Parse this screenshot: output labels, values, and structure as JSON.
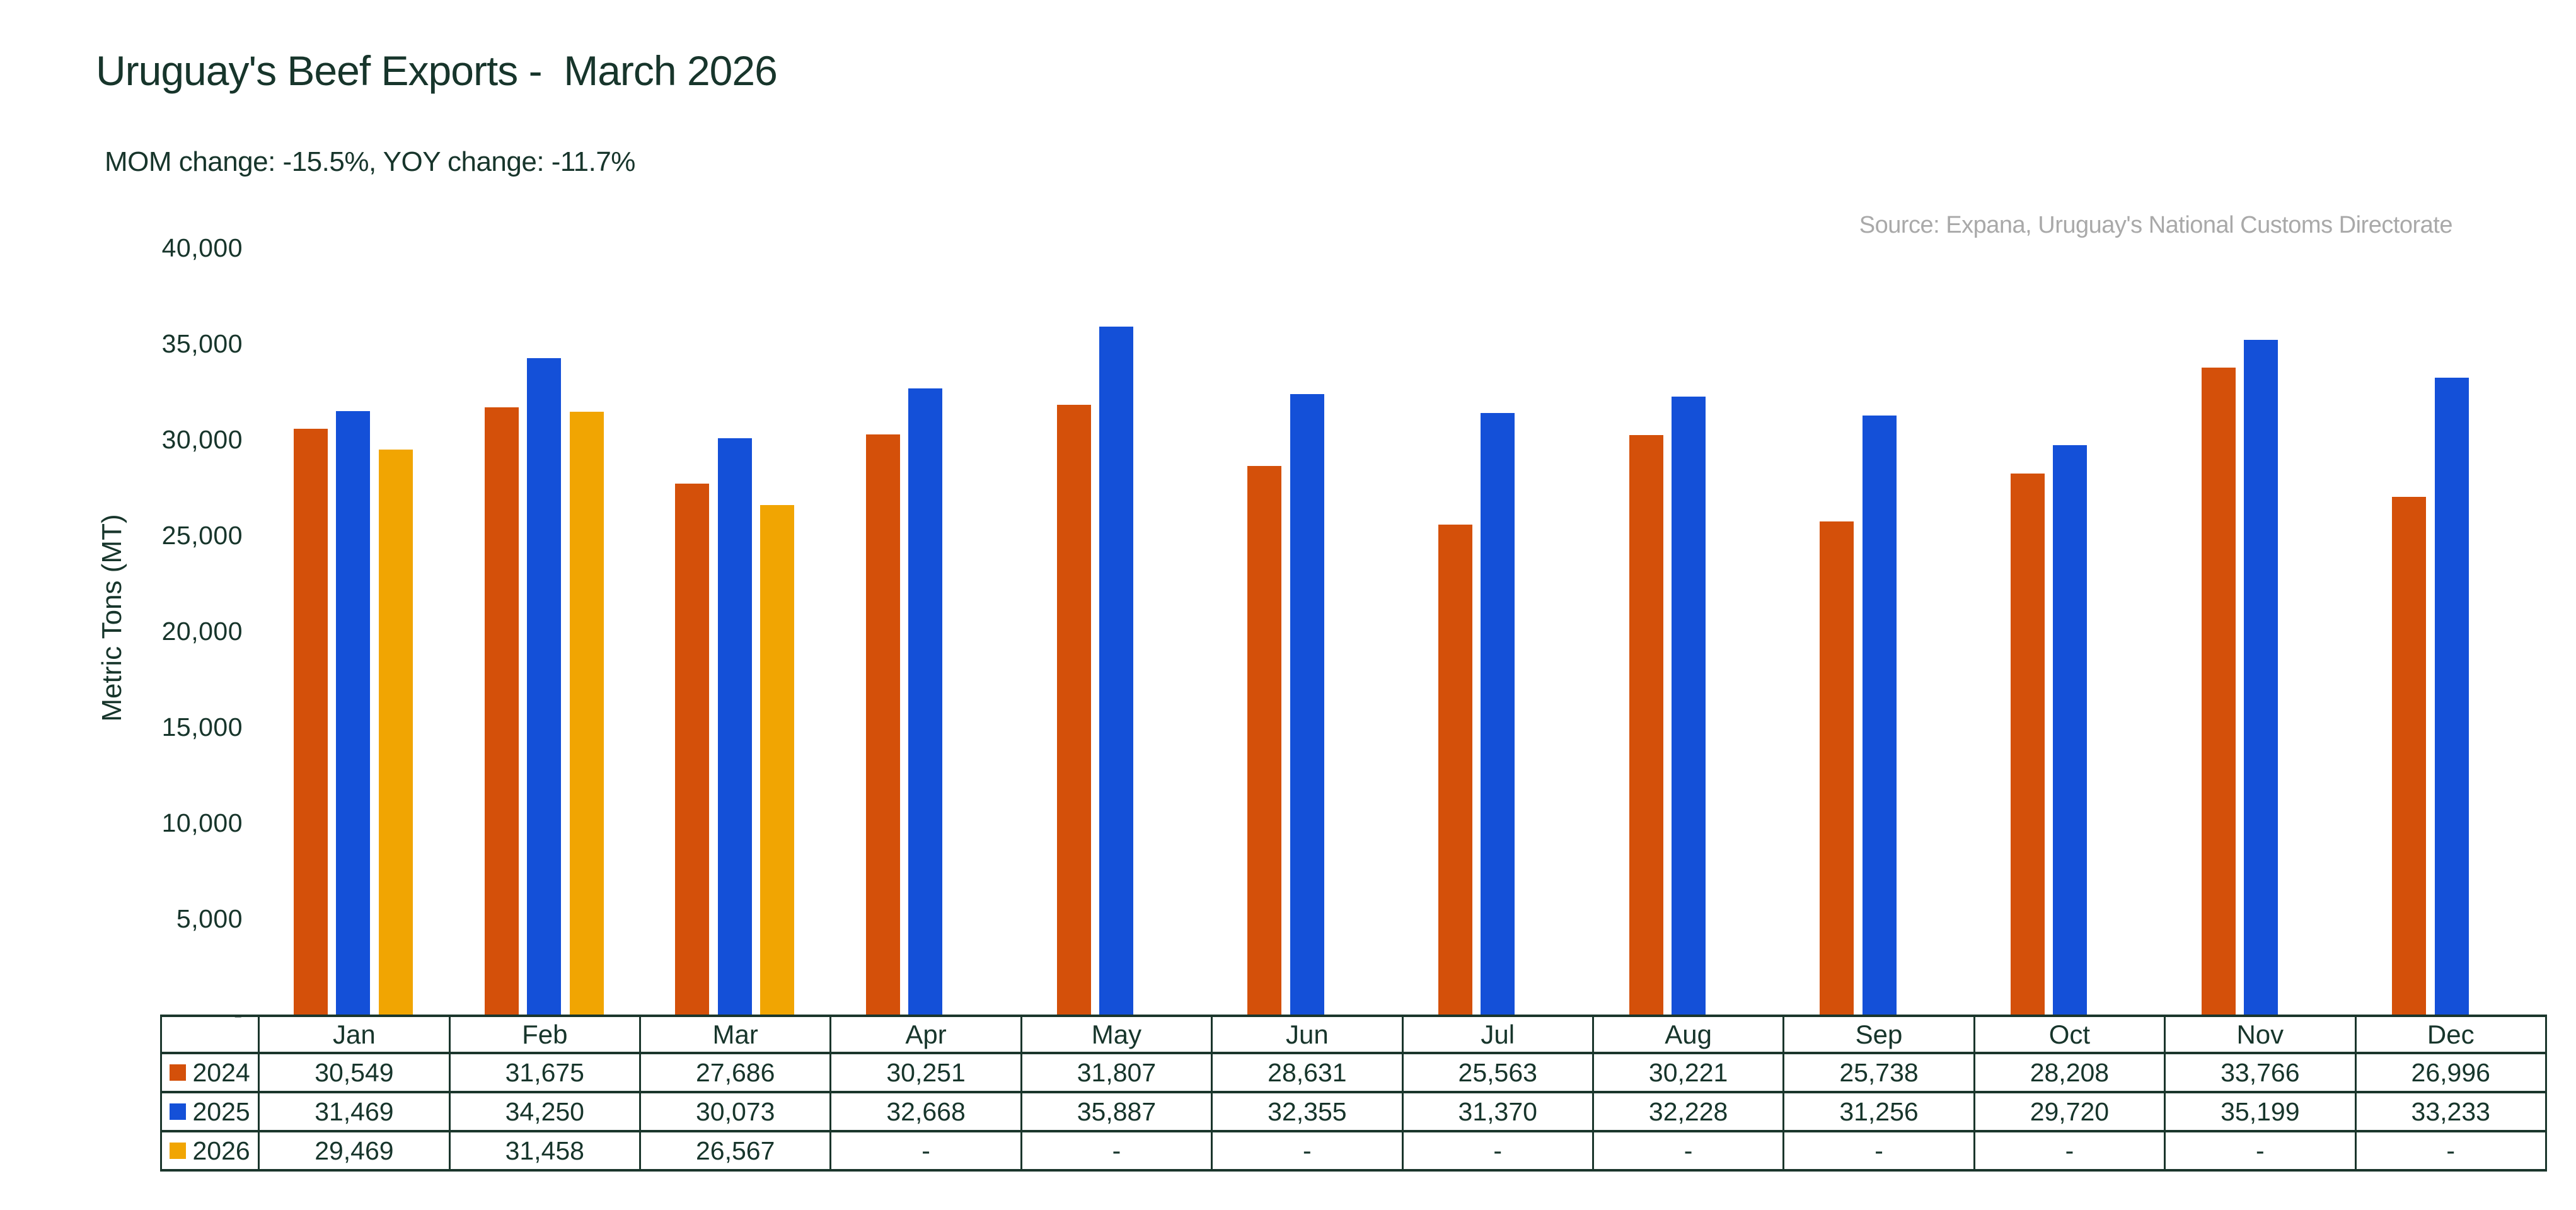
{
  "title": "Uruguay's Beef Exports -  March 2026",
  "subtitle": "MOM change: -15.5%, YOY change: -11.7%",
  "source": "Source: Expana, Uruguay's National Customs Directorate",
  "y_axis": {
    "title": "Metric Tons (MT)",
    "ticks": [
      "40,000",
      "35,000",
      "30,000",
      "25,000",
      "20,000",
      "15,000",
      "10,000",
      "5,000",
      "-"
    ]
  },
  "chart_data": {
    "type": "bar",
    "title": "Uruguay's Beef Exports -  March 2026",
    "categories": [
      "Jan",
      "Feb",
      "Mar",
      "Apr",
      "May",
      "Jun",
      "Jul",
      "Aug",
      "Sep",
      "Oct",
      "Nov",
      "Dec"
    ],
    "series": [
      {
        "name": "2024",
        "color": "#d4500a",
        "values": [
          30549,
          31675,
          27686,
          30251,
          31807,
          28631,
          25563,
          30221,
          25738,
          28208,
          33766,
          26996
        ]
      },
      {
        "name": "2025",
        "color": "#1450d8",
        "values": [
          31469,
          34250,
          30073,
          32668,
          35887,
          32355,
          31370,
          32228,
          31256,
          29720,
          35199,
          33233
        ]
      },
      {
        "name": "2026",
        "color": "#f1a502",
        "values": [
          29469,
          31458,
          26567,
          null,
          null,
          null,
          null,
          null,
          null,
          null,
          null,
          null
        ]
      }
    ],
    "xlabel": "",
    "ylabel": "Metric Tons (MT)",
    "ylim": [
      0,
      40000
    ],
    "grid": false,
    "legend_position": "table-left"
  },
  "table": {
    "empty_cell": "-",
    "row_headers": [
      "2024",
      "2025",
      "2026"
    ],
    "display_rows": [
      [
        "30,549",
        "31,675",
        "27,686",
        "30,251",
        "31,807",
        "28,631",
        "25,563",
        "30,221",
        "25,738",
        "28,208",
        "33,766",
        "26,996"
      ],
      [
        "31,469",
        "34,250",
        "30,073",
        "32,668",
        "35,887",
        "32,355",
        "31,370",
        "32,228",
        "31,256",
        "29,720",
        "35,199",
        "33,233"
      ],
      [
        "29,469",
        "31,458",
        "26,567",
        "-",
        "-",
        "-",
        "-",
        "-",
        "-",
        "-",
        "-",
        "-"
      ]
    ]
  },
  "colors": {
    "text_dark": "#17352b",
    "border": "#1b362c",
    "source_gray": "#a9a9a9",
    "series_2024": "#d4500a",
    "series_2025": "#1450d8",
    "series_2026": "#f1a502"
  }
}
